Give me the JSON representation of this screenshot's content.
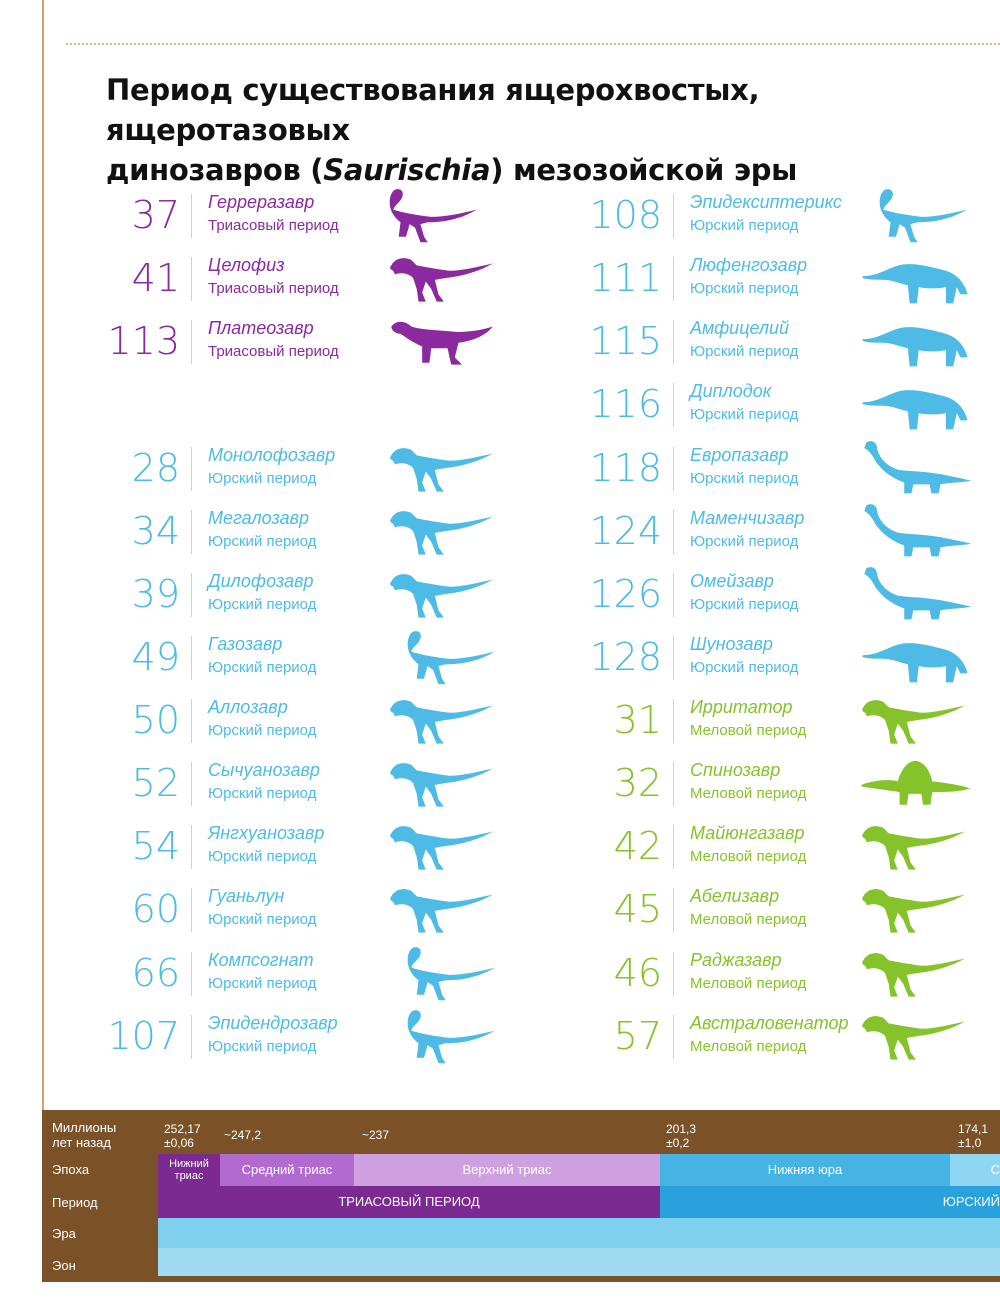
{
  "title": {
    "line1": "Период существования ящерохвостых, ящеротазовых",
    "line2_before": "динозавров (",
    "line2_italic": "Saurischia",
    "line2_after": ") мезозойской эры"
  },
  "colors": {
    "triassic": "#8a2a9e",
    "jurassic": "#4ebbe6",
    "cretaceous": "#86c22a"
  },
  "left_column": [
    {
      "number": "37",
      "name": "Герреразавр",
      "period": "Триасовый период",
      "color": "purple"
    },
    {
      "number": "41",
      "name": "Целофиз",
      "period": "Триасовый период",
      "color": "purple"
    },
    {
      "number": "113",
      "name": "Платеозавр",
      "period": "Триасовый период",
      "color": "purple"
    },
    {
      "number": "28",
      "name": "Монолофозавр",
      "period": "Юрский период",
      "color": "blue"
    },
    {
      "number": "34",
      "name": "Мегалозавр",
      "period": "Юрский период",
      "color": "blue"
    },
    {
      "number": "39",
      "name": "Дилофозавр",
      "period": "Юрский период",
      "color": "blue"
    },
    {
      "number": "49",
      "name": "Газозавр",
      "period": "Юрский период",
      "color": "blue"
    },
    {
      "number": "50",
      "name": "Аллозавр",
      "period": "Юрский период",
      "color": "blue"
    },
    {
      "number": "52",
      "name": "Сычуанозавр",
      "period": "Юрский период",
      "color": "blue"
    },
    {
      "number": "54",
      "name": "Янгхуанозавр",
      "period": "Юрский период",
      "color": "blue"
    },
    {
      "number": "60",
      "name": "Гуаньлун",
      "period": "Юрский период",
      "color": "blue"
    },
    {
      "number": "66",
      "name": "Компсогнат",
      "period": "Юрский период",
      "color": "blue"
    },
    {
      "number": "107",
      "name": "Эпидендрозавр",
      "period": "Юрский период",
      "color": "blue"
    }
  ],
  "right_column": [
    {
      "number": "108",
      "name": "Эпидексиптерикс",
      "period": "Юрский период",
      "color": "blue"
    },
    {
      "number": "111",
      "name": "Люфенгозавр",
      "period": "Юрский период",
      "color": "blue"
    },
    {
      "number": "115",
      "name": "Амфицелий",
      "period": "Юрский период",
      "color": "blue"
    },
    {
      "number": "116",
      "name": "Диплодок",
      "period": "Юрский период",
      "color": "blue"
    },
    {
      "number": "118",
      "name": "Европазавр",
      "period": "Юрский период",
      "color": "blue"
    },
    {
      "number": "124",
      "name": "Маменчизавр",
      "period": "Юрский период",
      "color": "blue"
    },
    {
      "number": "126",
      "name": "Омейзавр",
      "period": "Юрский период",
      "color": "blue"
    },
    {
      "number": "128",
      "name": "Шунозавр",
      "period": "Юрский период",
      "color": "blue"
    },
    {
      "number": "31",
      "name": "Ирритатор",
      "period": "Меловой период",
      "color": "green"
    },
    {
      "number": "32",
      "name": "Спинозавр",
      "period": "Меловой период",
      "color": "green"
    },
    {
      "number": "42",
      "name": "Майюнгазавр",
      "period": "Меловой период",
      "color": "green"
    },
    {
      "number": "45",
      "name": "Абелизавр",
      "period": "Меловой период",
      "color": "green"
    },
    {
      "number": "46",
      "name": "Раджазавр",
      "period": "Меловой период",
      "color": "green"
    },
    {
      "number": "57",
      "name": "Австраловенатор",
      "period": "Меловой период",
      "color": "green"
    }
  ],
  "timeline": {
    "row_labels": {
      "mya_line1": "Миллионы",
      "mya_line2": "лет назад",
      "epoch": "Эпоха",
      "period": "Период",
      "era": "Эра",
      "eon": "Эон"
    },
    "ticks": [
      {
        "line1": "252,17",
        "line2": "±0,06"
      },
      {
        "line1": "~247,2",
        "line2": ""
      },
      {
        "line1": "~237",
        "line2": ""
      },
      {
        "line1": "201,3",
        "line2": "±0,2"
      },
      {
        "line1": "174,1",
        "line2": "±1,0"
      }
    ],
    "epochs": [
      {
        "label_line1": "Нижний",
        "label_line2": "триас",
        "color": "#7a2a90"
      },
      {
        "label": "Средний триас",
        "color": "#b26ad0"
      },
      {
        "label": "Верхний триас",
        "color": "#cfa0e0"
      },
      {
        "label": "Нижняя юра",
        "color": "#45b3e3"
      },
      {
        "label": "С",
        "color": "#8fd6f2"
      }
    ],
    "periods": [
      {
        "label": "ТРИАСОВЫЙ ПЕРИОД",
        "color": "#7a2a90"
      },
      {
        "label": "ЮРСКИЙ",
        "color": "#2aa1dc"
      }
    ],
    "era_color": "#7fd0ee",
    "eon_color": "#9fdcf2"
  }
}
